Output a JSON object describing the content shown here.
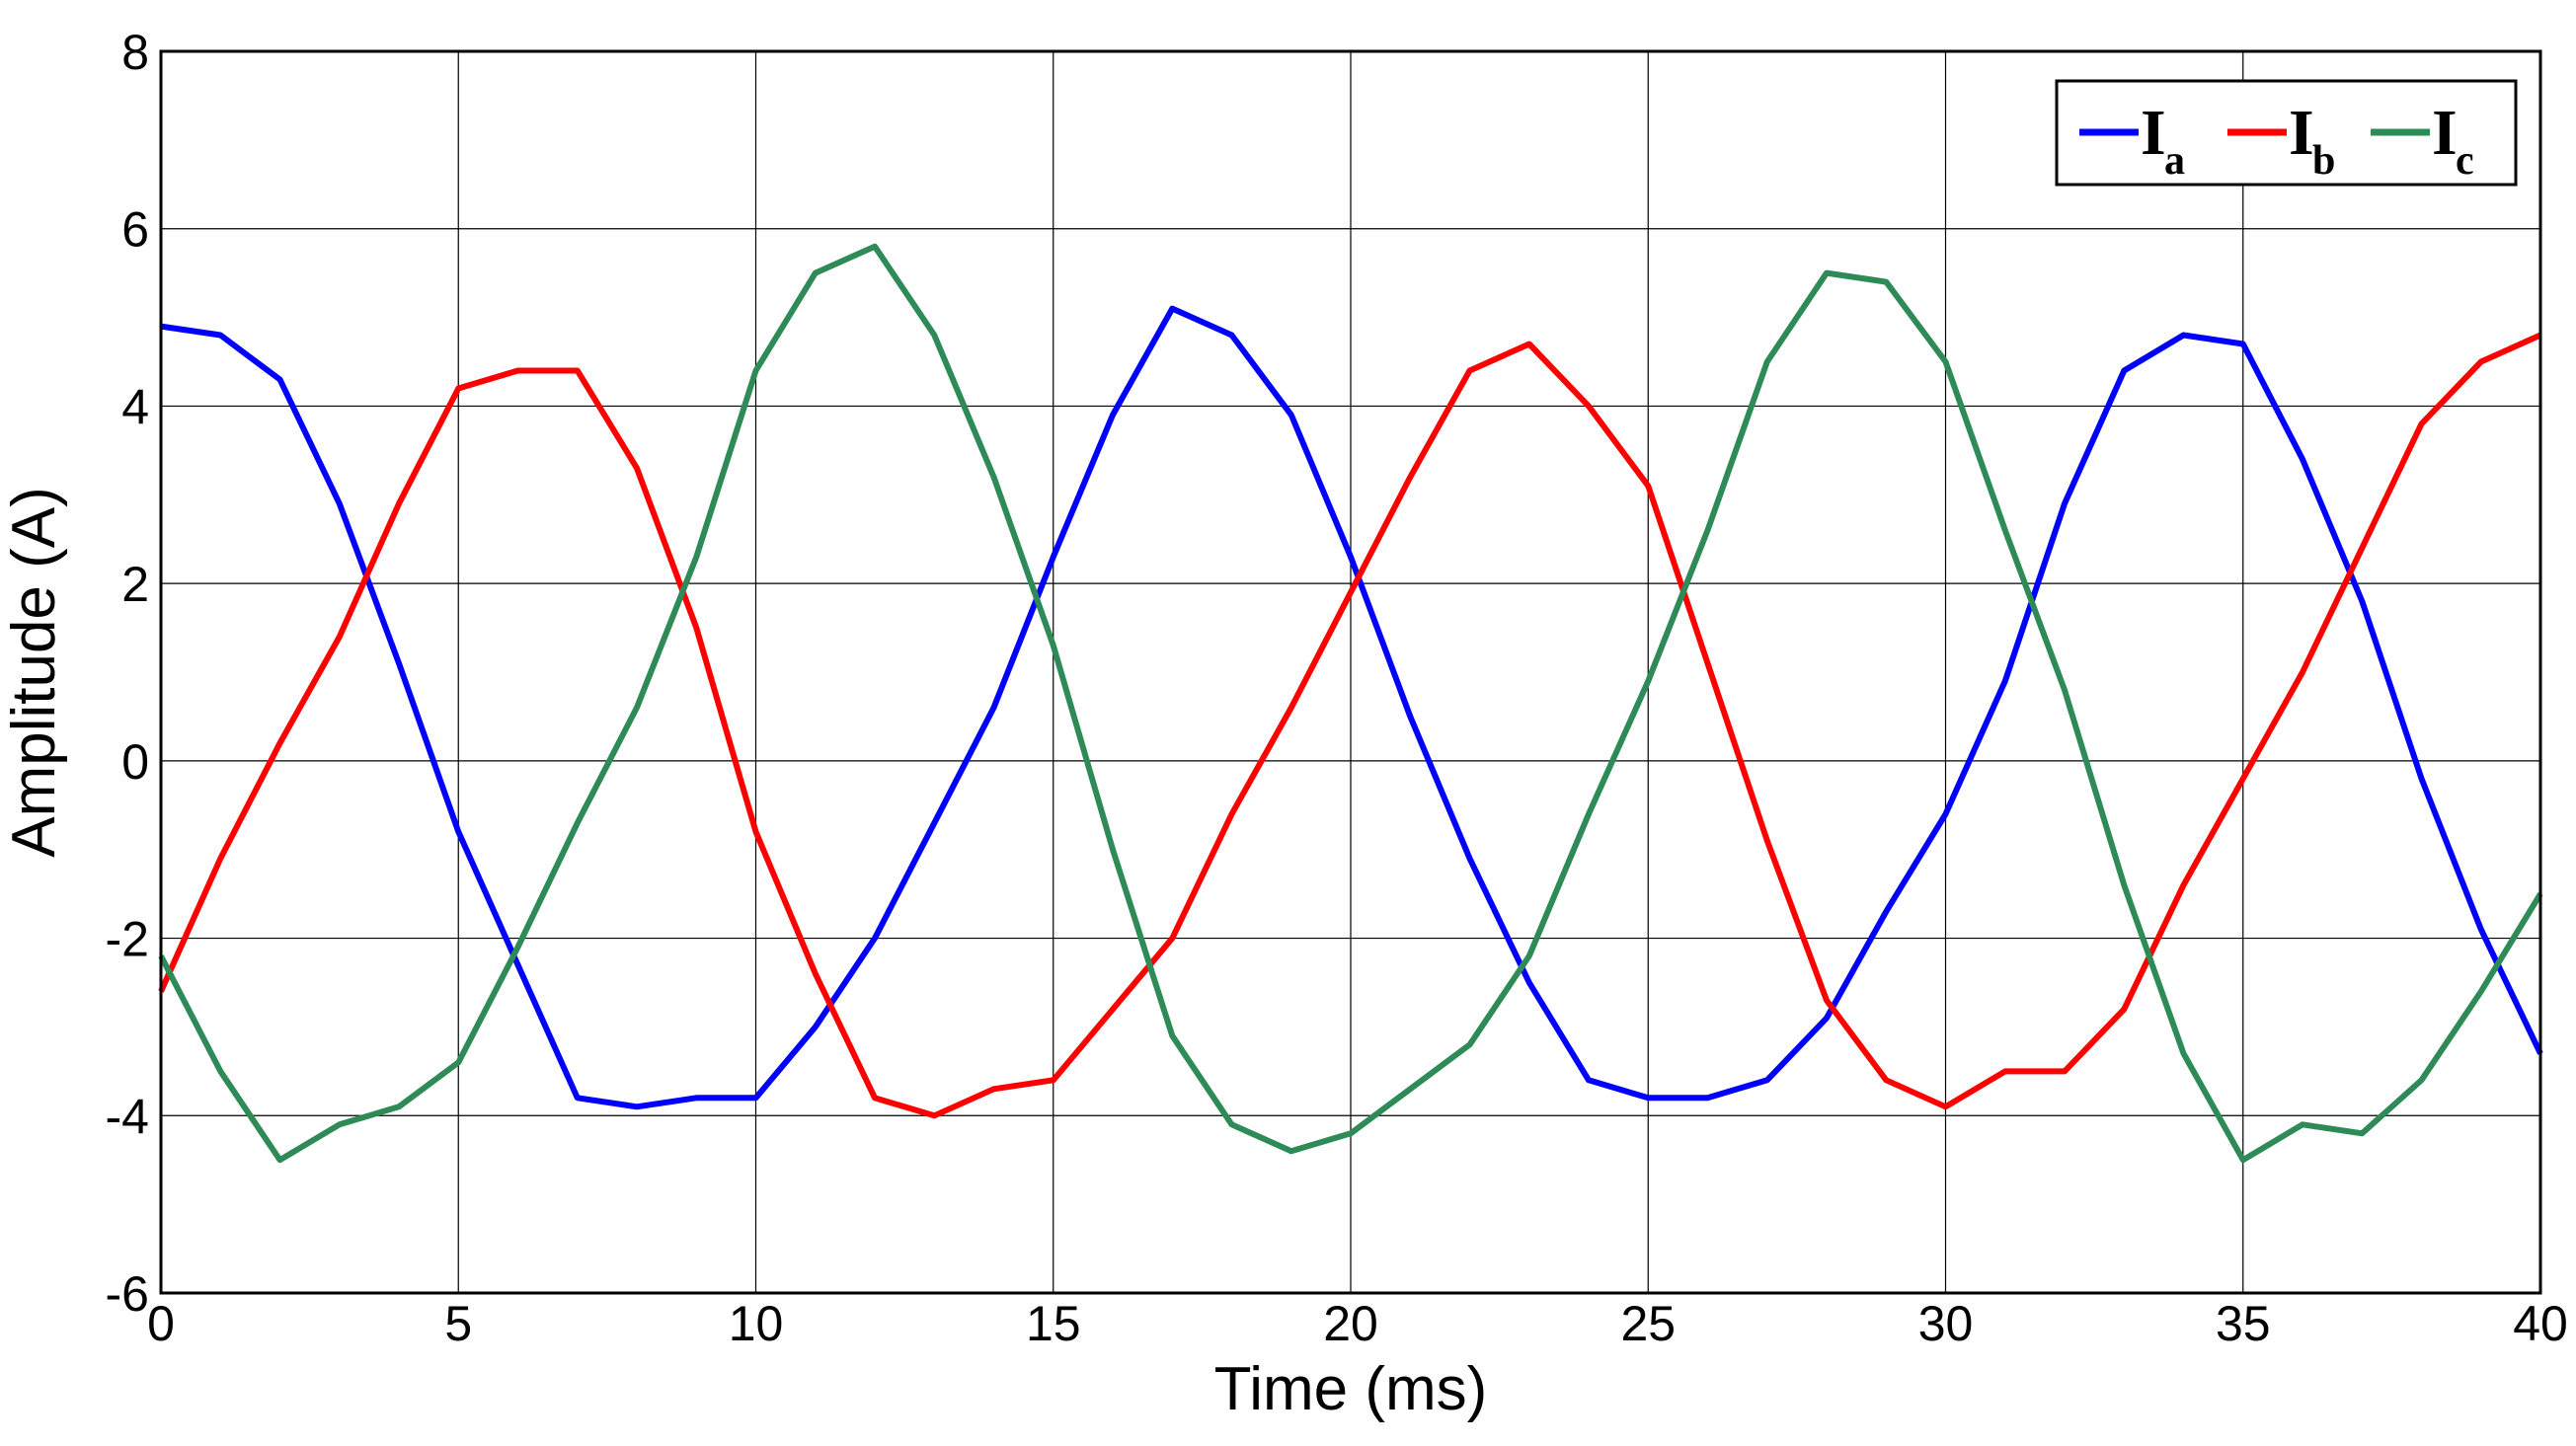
{
  "chart_data": {
    "type": "line",
    "xlabel": "Time (ms)",
    "ylabel": "Amplitude (A)",
    "xlim": [
      0,
      40
    ],
    "ylim": [
      -6,
      8
    ],
    "x_ticks": [
      0,
      5,
      10,
      15,
      20,
      25,
      30,
      35,
      40
    ],
    "y_ticks": [
      -6,
      -4,
      -2,
      0,
      2,
      4,
      6,
      8
    ],
    "grid": true,
    "legend_position": "top-right",
    "x": [
      0,
      1,
      2,
      3,
      4,
      5,
      6,
      7,
      8,
      9,
      10,
      11,
      12,
      13,
      14,
      15,
      16,
      17,
      18,
      19,
      20,
      21,
      22,
      23,
      24,
      25,
      26,
      27,
      28,
      29,
      30,
      31,
      32,
      33,
      34,
      35,
      36,
      37,
      38,
      39,
      40
    ],
    "series": [
      {
        "name": "I",
        "subscript": "a",
        "color": "#0000ff",
        "values": [
          4.9,
          4.8,
          4.3,
          2.9,
          1.1,
          -0.8,
          -2.3,
          -3.8,
          -3.9,
          -3.8,
          -3.8,
          -3.0,
          -2.0,
          -0.7,
          0.6,
          2.3,
          3.9,
          5.1,
          4.8,
          3.9,
          2.3,
          0.5,
          -1.1,
          -2.5,
          -3.6,
          -3.8,
          -3.8,
          -3.6,
          -2.9,
          -1.7,
          -0.6,
          0.9,
          2.9,
          4.4,
          4.8,
          4.7,
          3.4,
          1.8,
          -0.2,
          -1.9,
          -3.3
        ]
      },
      {
        "name": "I",
        "subscript": "b",
        "color": "#ff0000",
        "values": [
          -2.6,
          -1.1,
          0.2,
          1.4,
          2.9,
          4.2,
          4.4,
          4.4,
          3.3,
          1.5,
          -0.8,
          -2.4,
          -3.8,
          -4.0,
          -3.7,
          -3.6,
          -2.8,
          -2.0,
          -0.6,
          0.6,
          1.9,
          3.2,
          4.4,
          4.7,
          4.0,
          3.1,
          1.1,
          -0.9,
          -2.7,
          -3.6,
          -3.9,
          -3.5,
          -3.5,
          -2.8,
          -1.4,
          -0.2,
          1.0,
          2.4,
          3.8,
          4.5,
          4.8
        ]
      },
      {
        "name": "I",
        "subscript": "c",
        "color": "#2e8b57",
        "values": [
          -2.2,
          -3.5,
          -4.5,
          -4.1,
          -3.9,
          -3.4,
          -2.1,
          -0.7,
          0.6,
          2.3,
          4.4,
          5.5,
          5.8,
          4.8,
          3.2,
          1.3,
          -1.0,
          -3.1,
          -4.1,
          -4.4,
          -4.2,
          -3.7,
          -3.2,
          -2.2,
          -0.6,
          0.9,
          2.6,
          4.5,
          5.5,
          5.4,
          4.5,
          2.6,
          0.8,
          -1.4,
          -3.3,
          -4.5,
          -4.1,
          -4.2,
          -3.6,
          -2.6,
          -1.5
        ]
      }
    ]
  }
}
